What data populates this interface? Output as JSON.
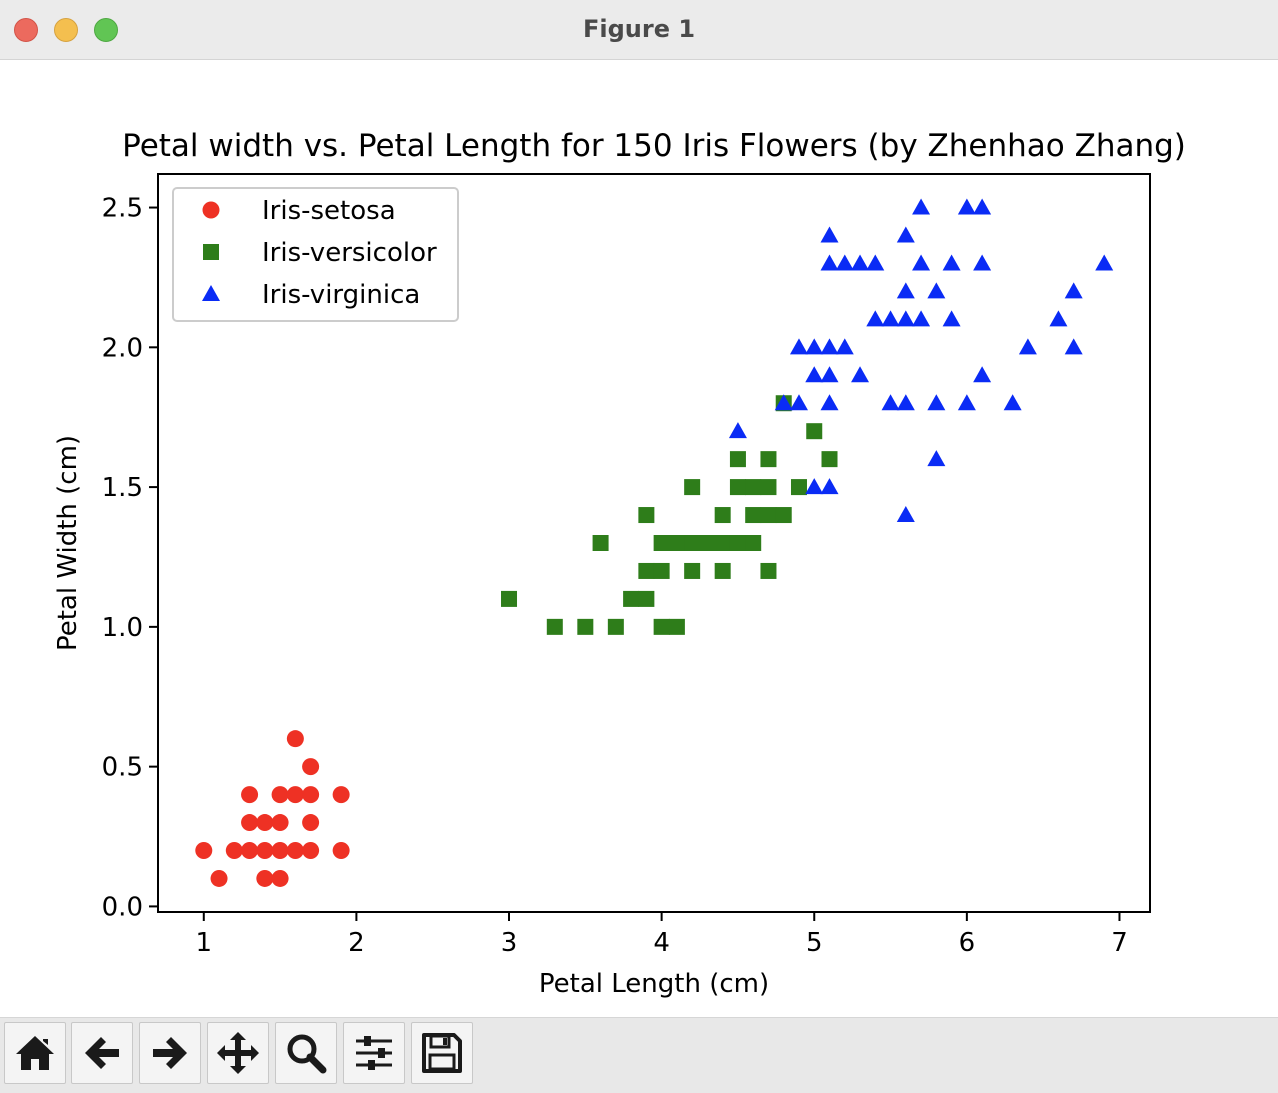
{
  "window": {
    "title": "Figure 1"
  },
  "toolbar": {
    "buttons": [
      {
        "name": "home-button",
        "icon": "home-icon"
      },
      {
        "name": "back-button",
        "icon": "arrow-left-icon"
      },
      {
        "name": "forward-button",
        "icon": "arrow-right-icon"
      },
      {
        "name": "pan-button",
        "icon": "move-icon"
      },
      {
        "name": "zoom-button",
        "icon": "magnifier-icon"
      },
      {
        "name": "configure-subplots-button",
        "icon": "sliders-icon"
      },
      {
        "name": "save-button",
        "icon": "floppy-disk-icon"
      }
    ]
  },
  "chart_data": {
    "type": "scatter",
    "title": "Petal width vs. Petal Length for 150 Iris Flowers (by Zhenhao Zhang)",
    "xlabel": "Petal Length (cm)",
    "ylabel": "Petal Width (cm)",
    "xlim": [
      0.7,
      7.2
    ],
    "ylim": [
      -0.02,
      2.62
    ],
    "xticks": [
      1,
      2,
      3,
      4,
      5,
      6,
      7
    ],
    "xtick_labels": [
      "1",
      "2",
      "3",
      "4",
      "5",
      "6",
      "7"
    ],
    "yticks": [
      0.0,
      0.5,
      1.0,
      1.5,
      2.0,
      2.5
    ],
    "ytick_labels": [
      "0.0",
      "0.5",
      "1.0",
      "1.5",
      "2.0",
      "2.5"
    ],
    "grid": false,
    "legend_position": "top-left",
    "series": [
      {
        "name": "Iris-setosa",
        "marker": "circle",
        "color": "#ee3124",
        "points": [
          [
            1.0,
            0.2
          ],
          [
            1.1,
            0.1
          ],
          [
            1.2,
            0.2
          ],
          [
            1.3,
            0.2
          ],
          [
            1.3,
            0.3
          ],
          [
            1.3,
            0.4
          ],
          [
            1.4,
            0.1
          ],
          [
            1.4,
            0.2
          ],
          [
            1.4,
            0.3
          ],
          [
            1.5,
            0.1
          ],
          [
            1.5,
            0.2
          ],
          [
            1.5,
            0.3
          ],
          [
            1.5,
            0.4
          ],
          [
            1.6,
            0.2
          ],
          [
            1.6,
            0.4
          ],
          [
            1.6,
            0.6
          ],
          [
            1.7,
            0.2
          ],
          [
            1.7,
            0.3
          ],
          [
            1.7,
            0.4
          ],
          [
            1.7,
            0.5
          ],
          [
            1.9,
            0.2
          ],
          [
            1.9,
            0.4
          ]
        ]
      },
      {
        "name": "Iris-versicolor",
        "marker": "square",
        "color": "#2e7d1a",
        "points": [
          [
            3.0,
            1.1
          ],
          [
            3.3,
            1.0
          ],
          [
            3.5,
            1.0
          ],
          [
            3.6,
            1.3
          ],
          [
            3.7,
            1.0
          ],
          [
            3.8,
            1.1
          ],
          [
            3.9,
            1.1
          ],
          [
            3.9,
            1.2
          ],
          [
            3.9,
            1.4
          ],
          [
            4.0,
            1.0
          ],
          [
            4.0,
            1.2
          ],
          [
            4.0,
            1.3
          ],
          [
            4.1,
            1.0
          ],
          [
            4.1,
            1.3
          ],
          [
            4.2,
            1.2
          ],
          [
            4.2,
            1.3
          ],
          [
            4.2,
            1.5
          ],
          [
            4.3,
            1.3
          ],
          [
            4.4,
            1.2
          ],
          [
            4.4,
            1.3
          ],
          [
            4.4,
            1.4
          ],
          [
            4.5,
            1.3
          ],
          [
            4.5,
            1.5
          ],
          [
            4.5,
            1.6
          ],
          [
            4.6,
            1.3
          ],
          [
            4.6,
            1.4
          ],
          [
            4.6,
            1.5
          ],
          [
            4.7,
            1.2
          ],
          [
            4.7,
            1.4
          ],
          [
            4.7,
            1.5
          ],
          [
            4.7,
            1.6
          ],
          [
            4.8,
            1.4
          ],
          [
            4.8,
            1.8
          ],
          [
            4.9,
            1.5
          ],
          [
            5.0,
            1.7
          ],
          [
            5.1,
            1.6
          ]
        ]
      },
      {
        "name": "Iris-virginica",
        "marker": "triangle",
        "color": "#0a2bf5",
        "points": [
          [
            4.5,
            1.7
          ],
          [
            4.8,
            1.8
          ],
          [
            4.9,
            1.8
          ],
          [
            4.9,
            2.0
          ],
          [
            5.0,
            1.5
          ],
          [
            5.0,
            1.9
          ],
          [
            5.0,
            2.0
          ],
          [
            5.1,
            1.5
          ],
          [
            5.1,
            1.8
          ],
          [
            5.1,
            1.9
          ],
          [
            5.1,
            2.0
          ],
          [
            5.1,
            2.3
          ],
          [
            5.1,
            2.4
          ],
          [
            5.2,
            2.0
          ],
          [
            5.2,
            2.3
          ],
          [
            5.3,
            1.9
          ],
          [
            5.3,
            2.3
          ],
          [
            5.4,
            2.1
          ],
          [
            5.4,
            2.3
          ],
          [
            5.5,
            1.8
          ],
          [
            5.5,
            2.1
          ],
          [
            5.6,
            1.4
          ],
          [
            5.6,
            1.8
          ],
          [
            5.6,
            2.1
          ],
          [
            5.6,
            2.2
          ],
          [
            5.6,
            2.4
          ],
          [
            5.7,
            2.1
          ],
          [
            5.7,
            2.3
          ],
          [
            5.7,
            2.5
          ],
          [
            5.8,
            1.6
          ],
          [
            5.8,
            1.8
          ],
          [
            5.8,
            2.2
          ],
          [
            5.9,
            2.1
          ],
          [
            5.9,
            2.3
          ],
          [
            6.0,
            1.8
          ],
          [
            6.0,
            2.5
          ],
          [
            6.1,
            1.9
          ],
          [
            6.1,
            2.3
          ],
          [
            6.1,
            2.5
          ],
          [
            6.3,
            1.8
          ],
          [
            6.4,
            2.0
          ],
          [
            6.6,
            2.1
          ],
          [
            6.7,
            2.0
          ],
          [
            6.7,
            2.2
          ],
          [
            6.9,
            2.3
          ]
        ]
      }
    ]
  }
}
